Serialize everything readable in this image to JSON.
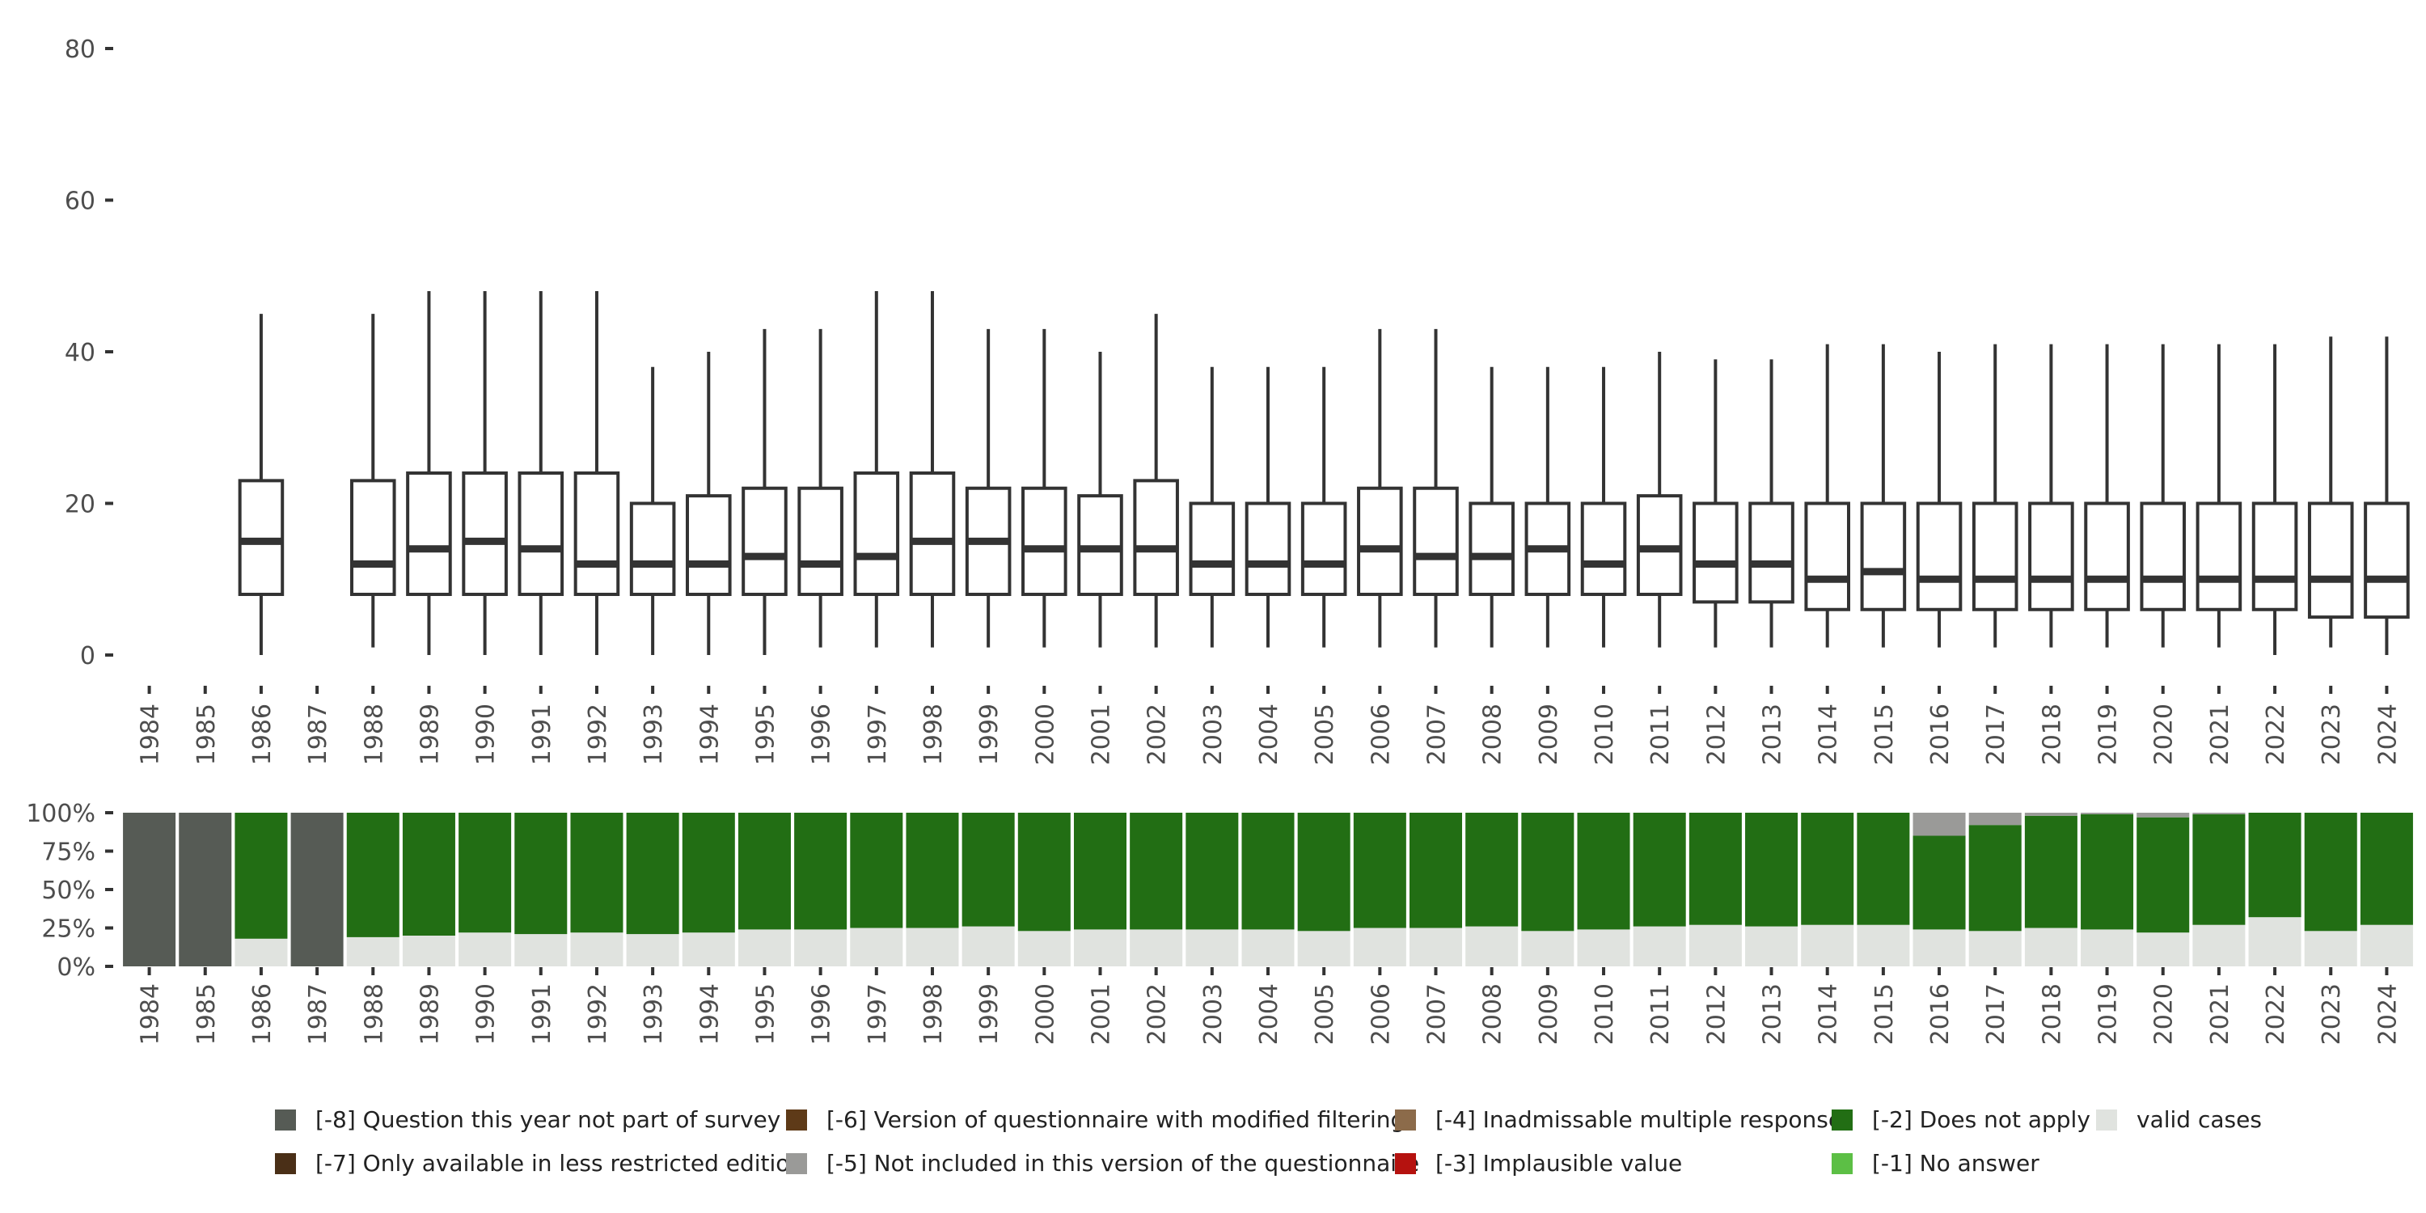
{
  "chart_data": [
    {
      "type": "boxplot",
      "title": "",
      "xlabel": "",
      "ylabel": "",
      "ylim": [
        0,
        80
      ],
      "yticks": [
        0,
        20,
        40,
        60,
        80
      ],
      "categories": [
        "1984",
        "1985",
        "1986",
        "1987",
        "1988",
        "1989",
        "1990",
        "1991",
        "1992",
        "1993",
        "1994",
        "1995",
        "1996",
        "1997",
        "1998",
        "1999",
        "2000",
        "2001",
        "2002",
        "2003",
        "2004",
        "2005",
        "2006",
        "2007",
        "2008",
        "2009",
        "2010",
        "2011",
        "2012",
        "2013",
        "2014",
        "2015",
        "2016",
        "2017",
        "2018",
        "2019",
        "2020",
        "2021",
        "2022",
        "2023",
        "2024"
      ],
      "boxes": [
        null,
        null,
        {
          "min": 0,
          "q1": 8,
          "median": 15,
          "q3": 23,
          "max": 45
        },
        null,
        {
          "min": 1,
          "q1": 8,
          "median": 12,
          "q3": 23,
          "max": 45
        },
        {
          "min": 0,
          "q1": 8,
          "median": 14,
          "q3": 24,
          "max": 48
        },
        {
          "min": 0,
          "q1": 8,
          "median": 15,
          "q3": 24,
          "max": 48
        },
        {
          "min": 0,
          "q1": 8,
          "median": 14,
          "q3": 24,
          "max": 48
        },
        {
          "min": 0,
          "q1": 8,
          "median": 12,
          "q3": 24,
          "max": 48
        },
        {
          "min": 0,
          "q1": 8,
          "median": 12,
          "q3": 20,
          "max": 38
        },
        {
          "min": 0,
          "q1": 8,
          "median": 12,
          "q3": 21,
          "max": 40
        },
        {
          "min": 0,
          "q1": 8,
          "median": 13,
          "q3": 22,
          "max": 43
        },
        {
          "min": 1,
          "q1": 8,
          "median": 12,
          "q3": 22,
          "max": 43
        },
        {
          "min": 1,
          "q1": 8,
          "median": 13,
          "q3": 24,
          "max": 48
        },
        {
          "min": 1,
          "q1": 8,
          "median": 15,
          "q3": 24,
          "max": 48
        },
        {
          "min": 1,
          "q1": 8,
          "median": 15,
          "q3": 22,
          "max": 43
        },
        {
          "min": 1,
          "q1": 8,
          "median": 14,
          "q3": 22,
          "max": 43
        },
        {
          "min": 1,
          "q1": 8,
          "median": 14,
          "q3": 21,
          "max": 40
        },
        {
          "min": 1,
          "q1": 8,
          "median": 14,
          "q3": 23,
          "max": 45
        },
        {
          "min": 1,
          "q1": 8,
          "median": 12,
          "q3": 20,
          "max": 38
        },
        {
          "min": 1,
          "q1": 8,
          "median": 12,
          "q3": 20,
          "max": 38
        },
        {
          "min": 1,
          "q1": 8,
          "median": 12,
          "q3": 20,
          "max": 38
        },
        {
          "min": 1,
          "q1": 8,
          "median": 14,
          "q3": 22,
          "max": 43
        },
        {
          "min": 1,
          "q1": 8,
          "median": 13,
          "q3": 22,
          "max": 43
        },
        {
          "min": 1,
          "q1": 8,
          "median": 13,
          "q3": 20,
          "max": 38
        },
        {
          "min": 1,
          "q1": 8,
          "median": 14,
          "q3": 20,
          "max": 38
        },
        {
          "min": 1,
          "q1": 8,
          "median": 12,
          "q3": 20,
          "max": 38
        },
        {
          "min": 1,
          "q1": 8,
          "median": 14,
          "q3": 21,
          "max": 40
        },
        {
          "min": 1,
          "q1": 7,
          "median": 12,
          "q3": 20,
          "max": 39
        },
        {
          "min": 1,
          "q1": 7,
          "median": 12,
          "q3": 20,
          "max": 39
        },
        {
          "min": 1,
          "q1": 6,
          "median": 10,
          "q3": 20,
          "max": 41
        },
        {
          "min": 1,
          "q1": 6,
          "median": 11,
          "q3": 20,
          "max": 41
        },
        {
          "min": 1,
          "q1": 6,
          "median": 10,
          "q3": 20,
          "max": 40
        },
        {
          "min": 1,
          "q1": 6,
          "median": 10,
          "q3": 20,
          "max": 41
        },
        {
          "min": 1,
          "q1": 6,
          "median": 10,
          "q3": 20,
          "max": 41
        },
        {
          "min": 1,
          "q1": 6,
          "median": 10,
          "q3": 20,
          "max": 41
        },
        {
          "min": 1,
          "q1": 6,
          "median": 10,
          "q3": 20,
          "max": 41
        },
        {
          "min": 1,
          "q1": 6,
          "median": 10,
          "q3": 20,
          "max": 41
        },
        {
          "min": 0,
          "q1": 6,
          "median": 10,
          "q3": 20,
          "max": 41
        },
        {
          "min": 1,
          "q1": 5,
          "median": 10,
          "q3": 20,
          "max": 42
        },
        {
          "min": 0,
          "q1": 5,
          "median": 10,
          "q3": 20,
          "max": 42
        }
      ],
      "line_color": "#333333"
    },
    {
      "type": "stacked_bar",
      "title": "",
      "xlabel": "",
      "ylabel": "",
      "ylim": [
        0,
        100
      ],
      "yticks": [
        "0%",
        "25%",
        "50%",
        "75%",
        "100%"
      ],
      "categories": [
        "1984",
        "1985",
        "1986",
        "1987",
        "1988",
        "1989",
        "1990",
        "1991",
        "1992",
        "1993",
        "1994",
        "1995",
        "1996",
        "1997",
        "1998",
        "1999",
        "2000",
        "2001",
        "2002",
        "2003",
        "2004",
        "2005",
        "2006",
        "2007",
        "2008",
        "2009",
        "2010",
        "2011",
        "2012",
        "2013",
        "2014",
        "2015",
        "2016",
        "2017",
        "2018",
        "2019",
        "2020",
        "2021",
        "2022",
        "2023",
        "2024"
      ],
      "series": [
        {
          "name": "valid cases",
          "color": "#e0e3df",
          "values": [
            0,
            0,
            18,
            0,
            19,
            20,
            22,
            21,
            22,
            21,
            22,
            24,
            24,
            25,
            25,
            26,
            23,
            24,
            24,
            24,
            24,
            23,
            25,
            25,
            26,
            23,
            24,
            26,
            27,
            26,
            27,
            27,
            24,
            23,
            25,
            24,
            22,
            27,
            32,
            23,
            27
          ]
        },
        {
          "name": "[-2] Does not apply",
          "color": "#226e14",
          "values": [
            0,
            0,
            82,
            0,
            81,
            80,
            78,
            79,
            78,
            79,
            78,
            76,
            76,
            75,
            75,
            74,
            77,
            76,
            76,
            76,
            76,
            77,
            75,
            75,
            74,
            77,
            76,
            74,
            73,
            74,
            73,
            73,
            61,
            69,
            73,
            75,
            75,
            72,
            68,
            77,
            73
          ]
        },
        {
          "name": "[-5] Not included in this version of the questionnaire",
          "color": "#9a9a98",
          "values": [
            0,
            0,
            0,
            0,
            0,
            0,
            0,
            0,
            0,
            0,
            0,
            0,
            0,
            0,
            0,
            0,
            0,
            0,
            0,
            0,
            0,
            0,
            0,
            0,
            0,
            0,
            0,
            0,
            0,
            0,
            0,
            0,
            15,
            8,
            2,
            1,
            3,
            1,
            0,
            0,
            0
          ]
        },
        {
          "name": "[-8] Question this year not part of survey",
          "color": "#565b55",
          "values": [
            100,
            100,
            0,
            100,
            0,
            0,
            0,
            0,
            0,
            0,
            0,
            0,
            0,
            0,
            0,
            0,
            0,
            0,
            0,
            0,
            0,
            0,
            0,
            0,
            0,
            0,
            0,
            0,
            0,
            0,
            0,
            0,
            0,
            0,
            0,
            0,
            0,
            0,
            0,
            0,
            0
          ]
        }
      ]
    }
  ],
  "legend": {
    "items": [
      {
        "label": "[-8] Question this year not part of survey",
        "color": "#565b55"
      },
      {
        "label": "[-7] Only available in less restricted edition",
        "color": "#4a2f17"
      },
      {
        "label": "[-6] Version of questionnaire with modified filtering",
        "color": "#5e3a18"
      },
      {
        "label": "[-5] Not included in this version of the questionnaire",
        "color": "#9a9a98"
      },
      {
        "label": "[-4] Inadmissable multiple response",
        "color": "#8c6b4a"
      },
      {
        "label": "[-3] Implausible value",
        "color": "#b5120f"
      },
      {
        "label": "[-2] Does not apply",
        "color": "#226e14"
      },
      {
        "label": "[-1] No answer",
        "color": "#5cbf45"
      },
      {
        "label": "valid cases",
        "color": "#e0e3df"
      }
    ]
  }
}
